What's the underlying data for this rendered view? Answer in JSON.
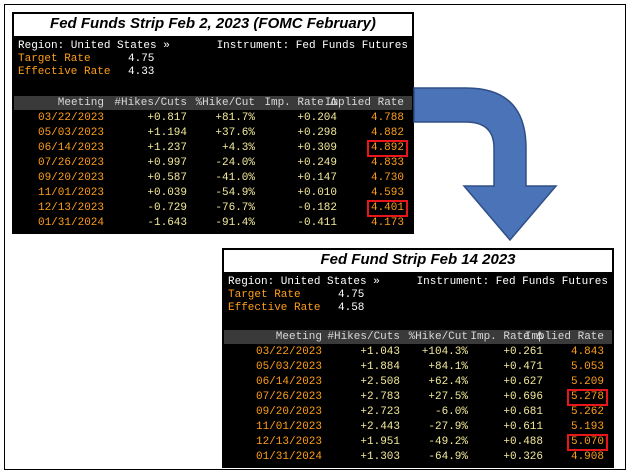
{
  "panel1": {
    "title": "Fed Funds Strip Feb 2, 2023 (FOMC February)",
    "region": "Region: United States »",
    "instrument": "Instrument: Fed Funds Futures",
    "target_label": "Target Rate",
    "target_value": "4.75",
    "effective_label": "Effective Rate",
    "effective_value": "4.33",
    "columns": [
      "Meeting",
      "#Hikes/Cuts",
      "%Hike/Cut",
      "Imp. Rate Δ",
      "Implied Rate"
    ],
    "rows": [
      [
        "03/22/2023",
        "+0.817",
        "+81.7%",
        "+0.204",
        "4.788"
      ],
      [
        "05/03/2023",
        "+1.194",
        "+37.6%",
        "+0.298",
        "4.882"
      ],
      [
        "06/14/2023",
        "+1.237",
        "+4.3%",
        "+0.309",
        "4.892"
      ],
      [
        "07/26/2023",
        "+0.997",
        "-24.0%",
        "+0.249",
        "4.833"
      ],
      [
        "09/20/2023",
        "+0.587",
        "-41.0%",
        "+0.147",
        "4.730"
      ],
      [
        "11/01/2023",
        "+0.039",
        "-54.9%",
        "+0.010",
        "4.593"
      ],
      [
        "12/13/2023",
        "-0.729",
        "-76.7%",
        "-0.182",
        "4.401"
      ],
      [
        "01/31/2024",
        "-1.643",
        "-91.4%",
        "-0.411",
        "4.173"
      ]
    ]
  },
  "panel2": {
    "title": "Fed Fund Strip Feb 14 2023",
    "region": "Region: United States »",
    "instrument": "Instrument: Fed Funds Futures",
    "target_label": "Target Rate",
    "target_value": "4.75",
    "effective_label": "Effective Rate",
    "effective_value": "4.58",
    "columns": [
      "Meeting",
      "#Hikes/Cuts",
      "%Hike/Cut",
      "Imp. Rate Δ",
      "Implied Rate"
    ],
    "rows": [
      [
        "03/22/2023",
        "+1.043",
        "+104.3%",
        "+0.261",
        "4.843"
      ],
      [
        "05/03/2023",
        "+1.884",
        "+84.1%",
        "+0.471",
        "5.053"
      ],
      [
        "06/14/2023",
        "+2.508",
        "+62.4%",
        "+0.627",
        "5.209"
      ],
      [
        "07/26/2023",
        "+2.783",
        "+27.5%",
        "+0.696",
        "5.278"
      ],
      [
        "09/20/2023",
        "+2.723",
        "-6.0%",
        "+0.681",
        "5.262"
      ],
      [
        "11/01/2023",
        "+2.443",
        "-27.9%",
        "+0.611",
        "5.193"
      ],
      [
        "12/13/2023",
        "+1.951",
        "-49.2%",
        "+0.488",
        "5.070"
      ],
      [
        "01/31/2024",
        "+1.303",
        "-64.9%",
        "+0.326",
        "4.908"
      ]
    ]
  },
  "colors": {
    "arrow_fill": "#4a73b8",
    "arrow_stroke": "#2f4f86",
    "highlight_box": "#e8151b",
    "terminal_bg": "#000000",
    "label_orange": "#ff9e1b",
    "value_yellow": "#f3ea9a"
  },
  "icons": {
    "arrow": "curved-down-arrow-icon"
  }
}
